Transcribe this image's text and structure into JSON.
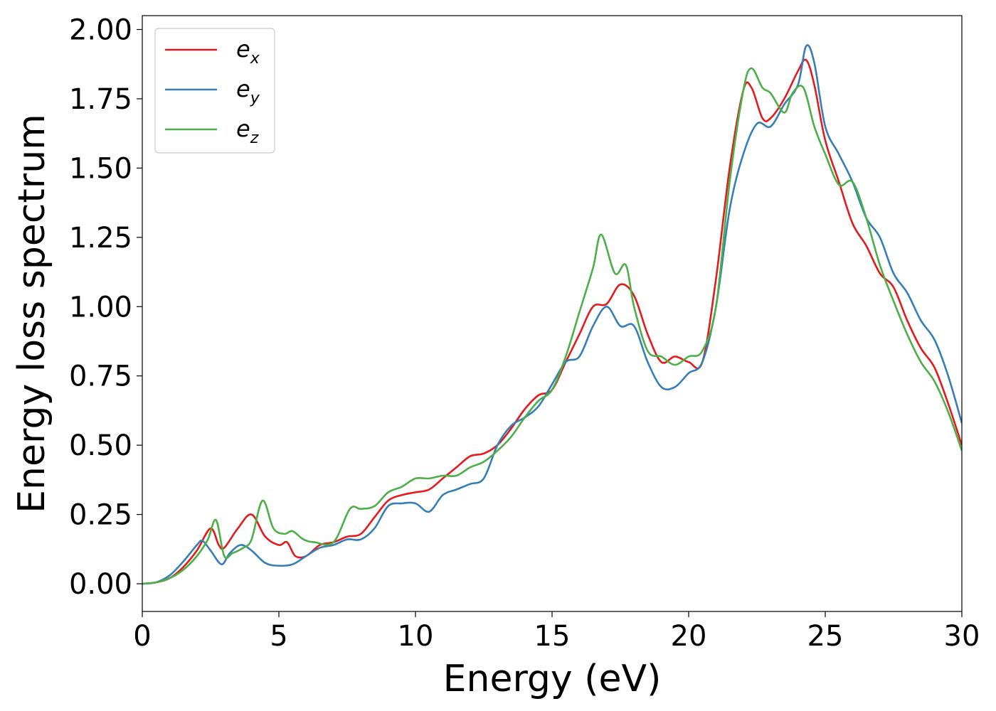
{
  "chart_data": {
    "type": "line",
    "title": "",
    "xlabel": "Energy (eV)",
    "ylabel": "Energy loss spectrum",
    "xlim": [
      0,
      30
    ],
    "ylim": [
      -0.1,
      2.05
    ],
    "xticks": [
      0,
      5,
      10,
      15,
      20,
      25,
      30
    ],
    "yticks": [
      0.0,
      0.25,
      0.5,
      0.75,
      1.0,
      1.25,
      1.5,
      1.75,
      2.0
    ],
    "xtick_labels": [
      "0",
      "5",
      "10",
      "15",
      "20",
      "25",
      "30"
    ],
    "ytick_labels": [
      "0.00",
      "0.25",
      "0.50",
      "0.75",
      "1.00",
      "1.25",
      "1.50",
      "1.75",
      "2.00"
    ],
    "grid": false,
    "legend_position": "top-left",
    "series": [
      {
        "name": "e_x",
        "base": "e",
        "sub": "x",
        "color": "#e41a1c",
        "x": [
          0,
          0.5,
          1,
          1.5,
          2,
          2.5,
          2.8,
          3,
          3.5,
          4,
          4.5,
          5,
          5.3,
          5.6,
          6,
          6.5,
          7,
          7.5,
          8,
          8.5,
          9,
          9.5,
          10,
          10.5,
          11,
          11.5,
          12,
          12.5,
          13,
          13.5,
          14,
          14.5,
          15,
          15.5,
          16,
          16.5,
          17,
          17.5,
          18,
          18.5,
          19,
          19.5,
          20,
          20.5,
          21,
          21.5,
          22,
          22.3,
          22.7,
          23,
          23.5,
          24,
          24.3,
          24.6,
          25,
          25.5,
          26,
          26.5,
          27,
          27.5,
          28,
          28.5,
          29,
          29.5,
          30
        ],
        "y": [
          0.0,
          0.005,
          0.02,
          0.06,
          0.12,
          0.2,
          0.14,
          0.13,
          0.2,
          0.25,
          0.17,
          0.14,
          0.15,
          0.1,
          0.1,
          0.14,
          0.15,
          0.17,
          0.18,
          0.24,
          0.3,
          0.32,
          0.33,
          0.34,
          0.38,
          0.42,
          0.46,
          0.47,
          0.5,
          0.56,
          0.63,
          0.68,
          0.7,
          0.8,
          0.9,
          1.0,
          1.01,
          1.08,
          1.04,
          0.9,
          0.8,
          0.82,
          0.8,
          0.8,
          1.1,
          1.5,
          1.78,
          1.79,
          1.68,
          1.68,
          1.75,
          1.85,
          1.89,
          1.8,
          1.6,
          1.45,
          1.3,
          1.22,
          1.12,
          1.07,
          0.95,
          0.85,
          0.78,
          0.65,
          0.5
        ]
      },
      {
        "name": "e_y",
        "base": "e",
        "sub": "y",
        "color": "#377eb8",
        "x": [
          0,
          0.5,
          1,
          1.5,
          2,
          2.2,
          2.5,
          2.9,
          3.2,
          3.6,
          4,
          4.5,
          5,
          5.5,
          6,
          6.5,
          7,
          7.5,
          8,
          8.5,
          9,
          9.5,
          10,
          10.5,
          11,
          11.5,
          12,
          12.5,
          13,
          13.5,
          14,
          14.5,
          15,
          15.5,
          16,
          16.5,
          17,
          17.5,
          18,
          18.5,
          19,
          19.5,
          20,
          20.5,
          21,
          21.5,
          22,
          22.5,
          23,
          23.5,
          24,
          24.3,
          24.6,
          25,
          25.5,
          26,
          26.5,
          27,
          27.5,
          28,
          28.5,
          29,
          29.5,
          30
        ],
        "y": [
          0.0,
          0.005,
          0.03,
          0.08,
          0.14,
          0.155,
          0.12,
          0.07,
          0.11,
          0.14,
          0.12,
          0.075,
          0.065,
          0.07,
          0.1,
          0.13,
          0.14,
          0.16,
          0.16,
          0.2,
          0.28,
          0.29,
          0.29,
          0.26,
          0.32,
          0.34,
          0.36,
          0.38,
          0.5,
          0.57,
          0.6,
          0.64,
          0.72,
          0.8,
          0.82,
          0.93,
          1.0,
          0.93,
          0.93,
          0.8,
          0.71,
          0.71,
          0.76,
          0.8,
          1.0,
          1.35,
          1.55,
          1.66,
          1.65,
          1.73,
          1.8,
          1.94,
          1.88,
          1.65,
          1.55,
          1.45,
          1.32,
          1.25,
          1.12,
          1.05,
          0.95,
          0.88,
          0.75,
          0.58
        ]
      },
      {
        "name": "e_z",
        "base": "e",
        "sub": "z",
        "color": "#4daf4a",
        "x": [
          0,
          0.5,
          1,
          1.5,
          2,
          2.4,
          2.7,
          3,
          3.3,
          3.7,
          4,
          4.4,
          4.8,
          5.2,
          5.5,
          5.9,
          6.3,
          7,
          7.6,
          8,
          8.5,
          9,
          9.5,
          10,
          10.5,
          11,
          11.5,
          12,
          12.5,
          13,
          13.5,
          14,
          14.5,
          15,
          15.5,
          16,
          16.5,
          16.8,
          17.3,
          17.7,
          18,
          18.5,
          19,
          19.5,
          20,
          20.5,
          21,
          21.5,
          22,
          22.3,
          22.7,
          23,
          23.5,
          23.8,
          24.2,
          24.6,
          25,
          25.5,
          26,
          26.5,
          27,
          27.5,
          28,
          28.5,
          29,
          29.5,
          30
        ],
        "y": [
          0.0,
          0.005,
          0.02,
          0.05,
          0.1,
          0.16,
          0.23,
          0.1,
          0.11,
          0.13,
          0.16,
          0.3,
          0.2,
          0.18,
          0.19,
          0.16,
          0.15,
          0.15,
          0.27,
          0.27,
          0.28,
          0.33,
          0.35,
          0.38,
          0.38,
          0.39,
          0.39,
          0.42,
          0.44,
          0.48,
          0.53,
          0.6,
          0.66,
          0.7,
          0.82,
          0.98,
          1.14,
          1.26,
          1.12,
          1.15,
          1.0,
          0.84,
          0.82,
          0.79,
          0.82,
          0.84,
          1.0,
          1.45,
          1.78,
          1.86,
          1.79,
          1.77,
          1.7,
          1.77,
          1.79,
          1.65,
          1.55,
          1.44,
          1.45,
          1.32,
          1.15,
          1.02,
          0.9,
          0.8,
          0.73,
          0.62,
          0.48
        ]
      }
    ]
  }
}
